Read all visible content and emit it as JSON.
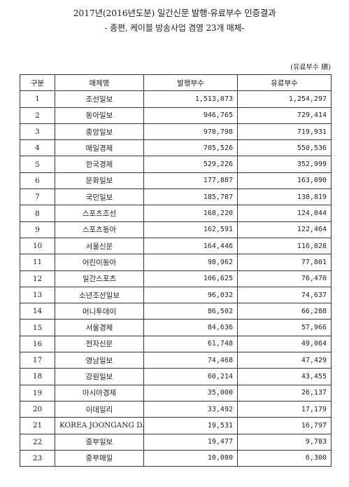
{
  "title": "2017년(2016년도분) 일간신문 발행·유료부수 인증결과",
  "subtitle": "- 종편, 케이블 방송사업 겸영 23개 매체-",
  "unit": "(유료부수 順)",
  "table": {
    "headers": [
      "구분",
      "매체명",
      "발행부수",
      "유료부수"
    ],
    "rows": [
      [
        "1",
        "조선일보",
        "1,513,073",
        "1,254,297"
      ],
      [
        "2",
        "동아일보",
        "946,765",
        "729,414"
      ],
      [
        "3",
        "중앙일보",
        "978,798",
        "719,931"
      ],
      [
        "4",
        "매일경제",
        "705,526",
        "550,536"
      ],
      [
        "5",
        "한국경제",
        "529,226",
        "352,999"
      ],
      [
        "6",
        "문화일보",
        "177,887",
        "163,090"
      ],
      [
        "7",
        "국민일보",
        "185,787",
        "138,819"
      ],
      [
        "8",
        "스포츠조선",
        "168,220",
        "124,044"
      ],
      [
        "9",
        "스포츠동아",
        "162,591",
        "122,464"
      ],
      [
        "10",
        "서울신문",
        "164,446",
        "116,028"
      ],
      [
        "11",
        "어린이동아",
        "98,962",
        "77,801"
      ],
      [
        "12",
        "일간스포츠",
        "106,625",
        "76,470"
      ],
      [
        "13",
        "소년조선일보",
        "96,032",
        "74,637"
      ],
      [
        "14",
        "머니투데이",
        "86,502",
        "66,288"
      ],
      [
        "15",
        "서울경제",
        "84,636",
        "57,966"
      ],
      [
        "16",
        "전자신문",
        "61,748",
        "49,064"
      ],
      [
        "17",
        "영남일보",
        "74,468",
        "47,429"
      ],
      [
        "18",
        "강원일보",
        "60,214",
        "43,455"
      ],
      [
        "19",
        "아시아경제",
        "35,000",
        "26,137"
      ],
      [
        "20",
        "이데일리",
        "33,492",
        "17,179"
      ],
      [
        "21",
        "KOREA JOONGANG DAILY",
        "19,531",
        "16,797"
      ],
      [
        "22",
        "중부일보",
        "19,477",
        "9,783"
      ],
      [
        "23",
        "중부매일",
        "10,080",
        "6,300"
      ]
    ]
  }
}
